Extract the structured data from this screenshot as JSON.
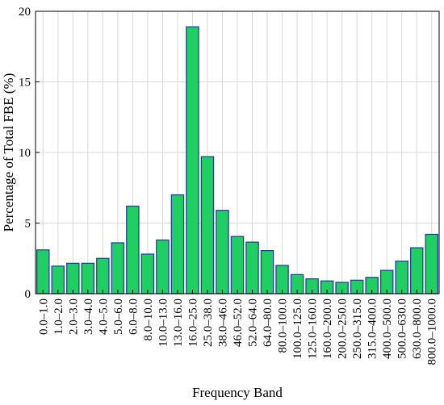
{
  "chart_data": {
    "type": "bar",
    "title": "",
    "xlabel": "Frequency Band",
    "ylabel": "Percentage of Total FBE (%)",
    "ylim": [
      0,
      20
    ],
    "yticks": [
      0,
      5,
      10,
      15,
      20
    ],
    "grid": true,
    "legend": "none",
    "colors": {
      "bar_fill": "#1fcf62",
      "bar_stroke": "#2a3aa8",
      "grid": "#d9d9d9",
      "axis": "#000000"
    },
    "categories": [
      "0.0–1.0",
      "1.0–2.0",
      "2.0–3.0",
      "3.0–4.0",
      "4.0–5.0",
      "5.0–6.0",
      "6.0–8.0",
      "8.0–10.0",
      "10.0–13.0",
      "13.0–16.0",
      "16.0–25.0",
      "25.0–38.0",
      "38.0–46.0",
      "46.0–52.0",
      "52.0–64.0",
      "64.0–80.0",
      "80.0–100.0",
      "100.0–125.0",
      "125.0–160.0",
      "160.0–200.0",
      "200.0–250.0",
      "250.0–315.0",
      "315.0–400.0",
      "400.0–500.0",
      "500.0–630.0",
      "630.0–800.0",
      "800.0–1000.0"
    ],
    "values": [
      3.1,
      1.95,
      2.15,
      2.15,
      2.5,
      3.6,
      6.2,
      2.8,
      3.8,
      7.0,
      18.9,
      9.7,
      5.9,
      4.05,
      3.65,
      3.05,
      2.0,
      1.35,
      1.05,
      0.9,
      0.8,
      0.95,
      1.15,
      1.65,
      2.3,
      3.25,
      4.2
    ]
  }
}
